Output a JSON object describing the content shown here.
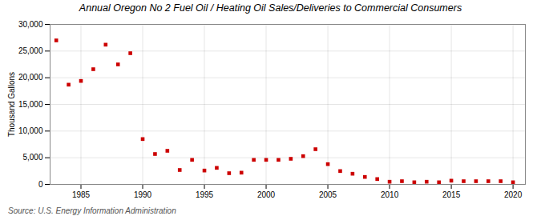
{
  "chart_data": {
    "type": "scatter",
    "title": "Annual Oregon No 2 Fuel Oil / Heating Oil Sales/Deliveries to Commercial Consumers",
    "ylabel": "Thousand Gallons",
    "source": "Source: U.S. Energy Information Administration",
    "x": [
      1983,
      1984,
      1985,
      1986,
      1987,
      1988,
      1989,
      1990,
      1991,
      1992,
      1993,
      1994,
      1995,
      1996,
      1997,
      1998,
      1999,
      2000,
      2001,
      2002,
      2003,
      2004,
      2005,
      2006,
      2007,
      2008,
      2009,
      2010,
      2011,
      2012,
      2013,
      2014,
      2015,
      2016,
      2017,
      2018,
      2019,
      2020
    ],
    "values": [
      27000,
      18700,
      19400,
      21600,
      26200,
      22500,
      24600,
      8500,
      5700,
      6300,
      2700,
      4600,
      2600,
      3100,
      2100,
      2200,
      4600,
      4600,
      4600,
      4800,
      5300,
      6600,
      3800,
      2500,
      2000,
      1400,
      1000,
      500,
      600,
      400,
      500,
      400,
      700,
      600,
      600,
      600,
      600,
      400
    ],
    "color": "#cc0000",
    "marker": "square",
    "xlim": [
      1982.5,
      2021
    ],
    "ylim": [
      0,
      30000
    ],
    "xticks": [
      1985,
      1990,
      1995,
      2000,
      2005,
      2010,
      2015,
      2020
    ],
    "yticks": [
      0,
      {
        "value": 5000,
        "label": "5,000"
      },
      {
        "value": 10000,
        "label": "10,000"
      },
      {
        "value": 15000,
        "label": "15,000"
      },
      {
        "value": 20000,
        "label": "20,000"
      },
      {
        "value": 25000,
        "label": "25,000"
      },
      {
        "value": 30000,
        "label": "30,000"
      }
    ],
    "grid": true
  }
}
